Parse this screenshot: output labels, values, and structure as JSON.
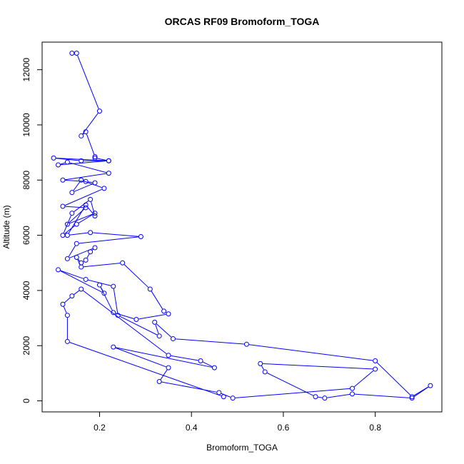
{
  "chart_data": {
    "type": "line",
    "title": "ORCAS RF09 Bromoform_TOGA",
    "xlabel": "Bromoform_TOGA",
    "ylabel": "Altitude (m)",
    "xlim": [
      0.075,
      0.945
    ],
    "ylim": [
      -400,
      13000
    ],
    "xticks": [
      0.2,
      0.4,
      0.6,
      0.8
    ],
    "xtick_labels": [
      "0.2",
      "0.4",
      "0.6",
      "0.8"
    ],
    "yticks": [
      0,
      2000,
      4000,
      6000,
      8000,
      10000,
      12000
    ],
    "ytick_labels": [
      "0",
      "2000",
      "4000",
      "6000",
      "8000",
      "10000",
      "12000"
    ],
    "markers": "open-circle",
    "grid": false,
    "series": [
      {
        "color": "#0000ff",
        "x": [
          0.14,
          0.15,
          0.2,
          0.16,
          0.17,
          0.19,
          0.19,
          0.22,
          0.1,
          0.16,
          0.22,
          0.11,
          0.13,
          0.22,
          0.12,
          0.17,
          0.19,
          0.14,
          0.16,
          0.21,
          0.12,
          0.17,
          0.13,
          0.19,
          0.15,
          0.12,
          0.14,
          0.18,
          0.19,
          0.17,
          0.13,
          0.18,
          0.29,
          0.15,
          0.13,
          0.19,
          0.18,
          0.17,
          0.16,
          0.15,
          0.16,
          0.25,
          0.31,
          0.34,
          0.35,
          0.28,
          0.23,
          0.2,
          0.21,
          0.11,
          0.17,
          0.23,
          0.24,
          0.33,
          0.32,
          0.36,
          0.52,
          0.8,
          0.88,
          0.92,
          0.88,
          0.75,
          0.69,
          0.67,
          0.56,
          0.55,
          0.8,
          0.75,
          0.49,
          0.46,
          0.33,
          0.35,
          0.23,
          0.45,
          0.42,
          0.35,
          0.16,
          0.14,
          0.12,
          0.13,
          0.13,
          0.47
        ],
        "y": [
          12600,
          12600,
          10500,
          9600,
          9750,
          8850,
          8800,
          8700,
          8800,
          8700,
          8700,
          8550,
          8650,
          8250,
          8000,
          7950,
          7900,
          7550,
          8000,
          7700,
          7050,
          7000,
          6400,
          6800,
          6400,
          6000,
          6800,
          7300,
          6700,
          7100,
          6000,
          6100,
          5950,
          5700,
          5150,
          5550,
          5400,
          5100,
          5000,
          5200,
          4850,
          5000,
          4050,
          3250,
          3150,
          2950,
          3200,
          4200,
          3900,
          4750,
          4400,
          4150,
          3100,
          2350,
          2850,
          2250,
          2050,
          1450,
          150,
          550,
          100,
          250,
          100,
          150,
          1050,
          1350,
          1150,
          450,
          100,
          300,
          700,
          1200,
          1950,
          1200,
          1450,
          1650,
          4050,
          3800,
          3500,
          3100,
          2150,
          150
        ]
      }
    ]
  }
}
